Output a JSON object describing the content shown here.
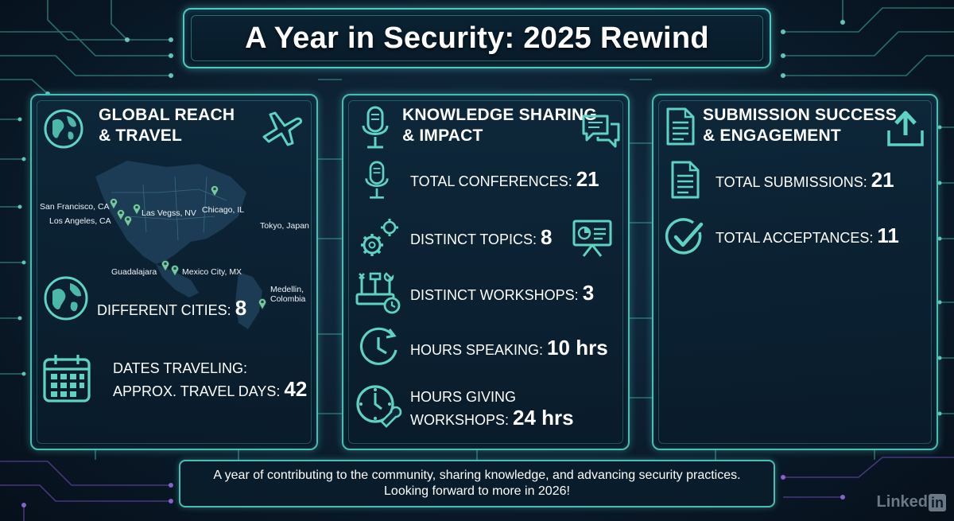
{
  "title": "A Year in Security: 2025 Rewind",
  "colors": {
    "accent": "#4bbcb4",
    "icon": "#5fd3c3",
    "background": "#0d2133"
  },
  "panels": [
    {
      "title_line1": "GLOBAL REACH",
      "title_line2": "& TRAVEL",
      "header_icons": [
        "globe-icon",
        "airplane-icon"
      ],
      "map": {
        "labels": [
          "San Francisco, CA",
          "Los Angeles, CA",
          "Las Vegss, NV",
          "Chicago, IL",
          "Tokyo, Japan",
          "Guadalajara",
          "Mexico City, MX",
          "Medellin, Colombia"
        ]
      },
      "stats": [
        {
          "icon": "globe-icon",
          "label": "DIFFERENT CITIES: ",
          "value": "8"
        },
        {
          "icon": "calendar-icon",
          "label_line1": "DATES TRAVELING:",
          "label": "APPROX. TRAVEL DAYS: ",
          "value": "42"
        }
      ]
    },
    {
      "title_line1": "KNOWLEDGE SHARING",
      "title_line2": "& IMPACT",
      "header_icons": [
        "microphone-icon",
        "chat-bubbles-icon"
      ],
      "stats": [
        {
          "icon": "microphone-icon",
          "label": "TOTAL CONFERENCES: ",
          "value": "21"
        },
        {
          "icon": "gears-icon",
          "label": "DISTINCT TOPICS: ",
          "value": "8",
          "extra_icon": "presentation-icon"
        },
        {
          "icon": "tools-icon",
          "label": "DISTINCT WORKSHOPS: ",
          "value": "3"
        },
        {
          "icon": "clock-icon",
          "label": "HOURS SPEAKING: ",
          "value": "10 hrs"
        },
        {
          "icon": "clock-wrench-icon",
          "label_line1": "HOURS GIVING",
          "label": "WORKSHOPS: ",
          "value": "24 hrs"
        }
      ]
    },
    {
      "title_line1": "SUBMISSION SUCCESS",
      "title_line2": "& ENGAGEMENT",
      "header_icons": [
        "document-icon",
        "upload-icon"
      ],
      "stats": [
        {
          "icon": "document-icon",
          "label": "TOTAL SUBMISSIONS: ",
          "value": "21"
        },
        {
          "icon": "checkmark-icon",
          "label": "TOTAL ACCEPTANCES: ",
          "value": "11"
        }
      ]
    }
  ],
  "footer": {
    "line1": "A year of contributing to the community, sharing knowledge, and advancing security practices.",
    "line2": "Looking forward to more in 2026!"
  },
  "brand": {
    "text": "Linked",
    "badge": "in"
  }
}
